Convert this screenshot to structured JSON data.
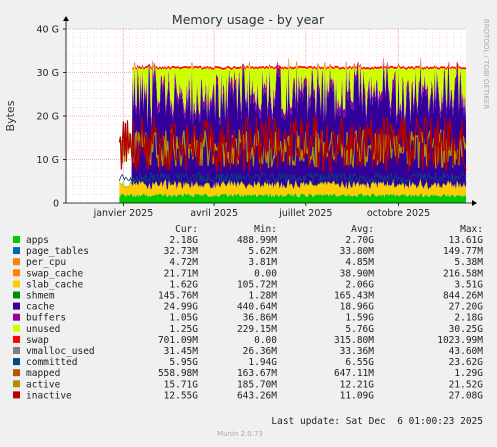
{
  "chart_data": {
    "type": "area",
    "title": "Memory usage - by year",
    "ylabel": "Bytes",
    "watermark": "RRDTOOL / TOBI OETIKER",
    "ylim": [
      0,
      40
    ],
    "y_ticks": [
      {
        "value": 0,
        "label": "0"
      },
      {
        "value": 10,
        "label": "10 G"
      },
      {
        "value": 20,
        "label": "20 G"
      },
      {
        "value": 30,
        "label": "30 G"
      },
      {
        "value": 40,
        "label": "40 G"
      }
    ],
    "x_range": [
      "2024-11-05",
      "2025-12-07"
    ],
    "x_ticks": [
      {
        "date": "2025-01-01",
        "label": "janvier 2025"
      },
      {
        "date": "2025-04-01",
        "label": "avril 2025"
      },
      {
        "date": "2025-07-01",
        "label": "juillet 2025"
      },
      {
        "date": "2025-10-01",
        "label": "octobre 2025"
      }
    ],
    "data_start": "2024-12-28",
    "full_data_start": "2025-01-10",
    "table_headers": [
      "Cur:",
      "Min:",
      "Avg:",
      "Max:"
    ],
    "series": [
      {
        "name": "apps",
        "color": "#00cc00",
        "cur": "2.18G",
        "min": "488.99M",
        "avg": "2.70G",
        "max": "13.61G"
      },
      {
        "name": "page_tables",
        "color": "#0066b3",
        "cur": "32.73M",
        "min": "5.62M",
        "avg": "33.80M",
        "max": "149.77M"
      },
      {
        "name": "per_cpu",
        "color": "#ff8000",
        "cur": "4.72M",
        "min": "3.81M",
        "avg": "4.85M",
        "max": "5.38M"
      },
      {
        "name": "swap_cache",
        "color": "#ff8000",
        "cur": "21.71M",
        "min": "0.00",
        "avg": "38.90M",
        "max": "216.58M"
      },
      {
        "name": "slab_cache",
        "color": "#ffcc00",
        "cur": "1.62G",
        "min": "105.72M",
        "avg": "2.06G",
        "max": "3.51G"
      },
      {
        "name": "shmem",
        "color": "#008f00",
        "cur": "145.76M",
        "min": "1.28M",
        "avg": "165.43M",
        "max": "844.26M"
      },
      {
        "name": "cache",
        "color": "#330099",
        "cur": "24.99G",
        "min": "440.64M",
        "avg": "18.96G",
        "max": "27.20G"
      },
      {
        "name": "buffers",
        "color": "#990099",
        "cur": "1.05G",
        "min": "36.86M",
        "avg": "1.59G",
        "max": "2.18G"
      },
      {
        "name": "unused",
        "color": "#ccff00",
        "cur": "1.25G",
        "min": "229.15M",
        "avg": "5.76G",
        "max": "30.25G"
      },
      {
        "name": "swap",
        "color": "#ff0000",
        "cur": "701.09M",
        "min": "0.00",
        "avg": "315.80M",
        "max": "1023.99M"
      },
      {
        "name": "vmalloc_used",
        "color": "#808080",
        "cur": "31.45M",
        "min": "26.36M",
        "avg": "33.36M",
        "max": "43.60M"
      },
      {
        "name": "committed",
        "color": "#00487d",
        "cur": "5.95G",
        "min": "1.94G",
        "avg": "6.55G",
        "max": "23.62G"
      },
      {
        "name": "mapped",
        "color": "#b35a00",
        "cur": "558.98M",
        "min": "163.67M",
        "avg": "647.11M",
        "max": "1.29G"
      },
      {
        "name": "active",
        "color": "#b38f00",
        "cur": "15.71G",
        "min": "185.70M",
        "avg": "12.21G",
        "max": "21.52G"
      },
      {
        "name": "inactive",
        "color": "#b30000",
        "cur": "12.55G",
        "min": "643.26M",
        "avg": "11.09G",
        "max": "27.08G"
      }
    ]
  },
  "footer": {
    "last_update": "Last update: Sat Dec  6 01:00:23 2025",
    "munin": "Munin 2.0.73"
  }
}
